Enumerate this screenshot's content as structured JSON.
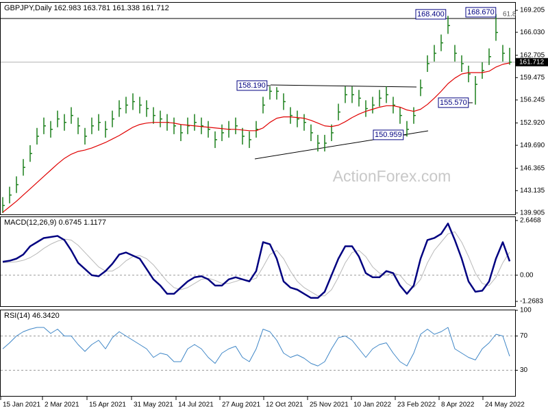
{
  "chart_data": [
    {
      "type": "ohlc",
      "title": "GBPJPY,Daily  162.983 163.781 161.338 161.712",
      "watermark": "ActionForex.com",
      "color": "#1a7f1a",
      "high": [
        142.2,
        143.7,
        145.2,
        147.7,
        149.7,
        152.2,
        153.7,
        153.2,
        154.7,
        154.2,
        155.2,
        153.7,
        152.2,
        153.7,
        154.2,
        153.2,
        154.7,
        156.2,
        156.7,
        157.2,
        156.7,
        156.2,
        155.2,
        154.7,
        154.2,
        153.7,
        152.7,
        153.7,
        154.2,
        153.7,
        153.2,
        151.7,
        152.7,
        153.2,
        153.7,
        152.2,
        151.7,
        153.2,
        156.7,
        158.19,
        158.1,
        157.2,
        155.2,
        154.7,
        154.2,
        152.7,
        151.2,
        151.2,
        152.7,
        155.7,
        158.2,
        158.2,
        157.7,
        156.2,
        156.7,
        157.7,
        158.2,
        156.7,
        155.2,
        153.2,
        155.2,
        159.2,
        162.7,
        164.2,
        165.7,
        168.4,
        164.2,
        162.7,
        161.2,
        159.7,
        161.7,
        163.7,
        168.67,
        164.2,
        163.781
      ],
      "low": [
        139.9,
        141.3,
        142.8,
        145.3,
        147.3,
        149.8,
        151.3,
        150.8,
        152.3,
        151.8,
        152.8,
        151.3,
        149.8,
        151.3,
        151.8,
        150.8,
        152.3,
        153.8,
        154.3,
        154.8,
        154.3,
        153.8,
        152.8,
        152.3,
        151.8,
        151.3,
        150.3,
        151.3,
        151.8,
        151.3,
        150.8,
        149.3,
        150.3,
        150.8,
        151.3,
        149.8,
        149.3,
        150.8,
        154.3,
        156.3,
        156.3,
        154.8,
        152.8,
        152.3,
        151.8,
        150.3,
        148.8,
        148.8,
        150.3,
        153.3,
        155.8,
        155.8,
        155.3,
        153.8,
        154.3,
        155.3,
        155.8,
        154.3,
        152.8,
        150.959,
        152.8,
        156.8,
        160.3,
        161.8,
        163.3,
        165.8,
        161.8,
        160.3,
        158.8,
        155.57,
        159.3,
        161.3,
        164.8,
        161.8,
        161.338
      ],
      "close": [
        141,
        142.5,
        144,
        146.5,
        148.5,
        151,
        152.5,
        152,
        153.5,
        153,
        154,
        152.5,
        151,
        152.5,
        153,
        152,
        153.5,
        155,
        155.5,
        156,
        155.5,
        155,
        154,
        153.5,
        153,
        152.5,
        151.5,
        152.5,
        153,
        152.5,
        152,
        150.5,
        151.5,
        152,
        152.5,
        151,
        150.5,
        152,
        155.5,
        157.5,
        157.5,
        156,
        154,
        153.5,
        153,
        151.5,
        150,
        150,
        151.5,
        154.5,
        157,
        157,
        156.5,
        155,
        155.5,
        156.5,
        157,
        155.5,
        154,
        152,
        154,
        158,
        161.5,
        163,
        164.5,
        167,
        163,
        161.5,
        160,
        158.5,
        160.5,
        162.5,
        166,
        163,
        161.712
      ],
      "series": [
        {
          "color": "#e00000",
          "values": [
            140,
            140.8,
            141.6,
            142.5,
            143.4,
            144.3,
            145.2,
            146.1,
            147,
            147.8,
            148.4,
            148.8,
            149,
            149.3,
            149.7,
            150.1,
            150.6,
            151.1,
            151.7,
            152.3,
            152.7,
            152.9,
            153,
            153,
            153,
            152.9,
            152.7,
            152.6,
            152.5,
            152.4,
            152.3,
            152.2,
            152.1,
            152,
            152,
            151.9,
            151.8,
            151.8,
            152.2,
            153,
            153.6,
            153.8,
            153.8,
            153.7,
            153.6,
            153.3,
            152.9,
            152.5,
            152.4,
            152.6,
            153.1,
            153.7,
            154.2,
            154.6,
            154.9,
            155.2,
            155.4,
            155.4,
            155.2,
            154.8,
            154.6,
            154.9,
            155.6,
            156.5,
            157.5,
            158.6,
            159.4,
            160,
            160.2,
            160.2,
            160.2,
            160.4,
            161,
            161.4,
            161.6
          ]
        }
      ],
      "annotations": [
        "158.190",
        "150.959",
        "155.570",
        "168.400",
        "168.670",
        "61.8"
      ],
      "ylim": [
        139.7,
        170.3
      ],
      "yticks": [
        169.205,
        {
          "value": 166.03,
          "label": "166.030"
        },
        162.705,
        159.475,
        156.245,
        {
          "value": 152.92,
          "label": "152.920"
        },
        {
          "value": 149.69,
          "label": "149.690"
        },
        146.365,
        143.135,
        139.905
      ]
    },
    {
      "type": "line",
      "title": "MACD(12,26,9) 0.6745 1.1177",
      "series": [
        {
          "color": "#000080",
          "values": [
            0.65,
            0.7,
            0.8,
            1.0,
            1.4,
            1.6,
            1.8,
            1.85,
            1.9,
            1.7,
            1.2,
            0.6,
            0.3,
            0.0,
            -0.05,
            0.2,
            0.55,
            1.0,
            1.1,
            0.95,
            0.8,
            0.3,
            -0.2,
            -0.5,
            -0.9,
            -0.9,
            -0.6,
            -0.3,
            -0.1,
            -0.05,
            -0.2,
            -0.5,
            -0.5,
            -0.2,
            -0.1,
            -0.2,
            -0.3,
            0.2,
            1.6,
            1.5,
            0.8,
            -0.3,
            -0.6,
            -0.7,
            -0.9,
            -1.1,
            -1.1,
            -0.8,
            0.0,
            0.8,
            1.4,
            1.4,
            0.9,
            0.1,
            -0.1,
            -0.1,
            0.2,
            0.1,
            -0.5,
            -0.9,
            -0.5,
            0.8,
            1.7,
            1.8,
            2.0,
            2.5,
            1.7,
            0.8,
            -0.3,
            -0.8,
            -0.75,
            -0.3,
            0.8,
            1.6,
            0.6745
          ]
        },
        {
          "color": "#b8b8b8",
          "values": [
            0.6,
            0.62,
            0.65,
            0.72,
            0.85,
            1.05,
            1.3,
            1.5,
            1.65,
            1.75,
            1.7,
            1.45,
            1.1,
            0.75,
            0.4,
            0.2,
            0.2,
            0.4,
            0.7,
            0.9,
            0.95,
            0.8,
            0.5,
            0.1,
            -0.3,
            -0.6,
            -0.7,
            -0.6,
            -0.4,
            -0.2,
            -0.15,
            -0.25,
            -0.4,
            -0.4,
            -0.3,
            -0.2,
            -0.25,
            -0.15,
            0.4,
            1.0,
            1.2,
            0.8,
            0.2,
            -0.3,
            -0.6,
            -0.8,
            -1.0,
            -1.0,
            -0.7,
            -0.1,
            0.6,
            1.1,
            1.2,
            0.9,
            0.4,
            0.1,
            0.0,
            0.1,
            0.0,
            -0.4,
            -0.6,
            -0.2,
            0.6,
            1.2,
            1.6,
            2.0,
            2.1,
            1.6,
            0.9,
            0.1,
            -0.4,
            -0.5,
            -0.1,
            0.6,
            1.1177
          ]
        }
      ],
      "ylim": [
        -1.5,
        2.81
      ],
      "yticks": [
        2.6468,
        {
          "value": 0,
          "label": "0.00"
        },
        -1.2683
      ],
      "levels": [
        0
      ]
    },
    {
      "type": "line",
      "title": "RSI(14) 46.3420",
      "series": [
        {
          "color": "#3d85c6",
          "values": [
            55,
            62,
            70,
            75,
            78,
            80,
            80,
            73,
            78,
            70,
            70,
            60,
            52,
            60,
            65,
            55,
            68,
            75,
            70,
            65,
            60,
            55,
            45,
            50,
            48,
            40,
            40,
            55,
            60,
            55,
            45,
            38,
            50,
            55,
            58,
            45,
            40,
            55,
            78,
            75,
            65,
            50,
            45,
            48,
            44,
            38,
            35,
            40,
            55,
            68,
            70,
            65,
            55,
            45,
            55,
            60,
            62,
            50,
            40,
            35,
            50,
            72,
            78,
            72,
            75,
            80,
            55,
            50,
            45,
            42,
            55,
            62,
            72,
            70,
            46.342
          ]
        }
      ],
      "ylim": [
        0,
        100
      ],
      "yticks": [
        100,
        70,
        30
      ],
      "levels": [
        70,
        30
      ],
      "xticks": [
        {
          "value": -0.3,
          "label": "15 Jan 2021"
        },
        {
          "value": 5.8,
          "label": "2 Mar 2021"
        },
        {
          "value": 12.3,
          "label": "15 Apr 2021"
        },
        {
          "value": 18.8,
          "label": "31 May 2021"
        },
        {
          "value": 25.3,
          "label": "14 Jul 2021"
        },
        {
          "value": 31.7,
          "label": "27 Aug 2021"
        },
        {
          "value": 38.1,
          "label": "12 Oct 2021"
        },
        {
          "value": 44.5,
          "label": "25 Nov 2021"
        },
        {
          "value": 50.9,
          "label": "10 Jan 2022"
        },
        {
          "value": 57.3,
          "label": "23 Feb 2022"
        },
        {
          "value": 63.7,
          "label": "8 Apr 2022"
        },
        {
          "value": 70.1,
          "label": "24 May 2022"
        }
      ]
    }
  ]
}
